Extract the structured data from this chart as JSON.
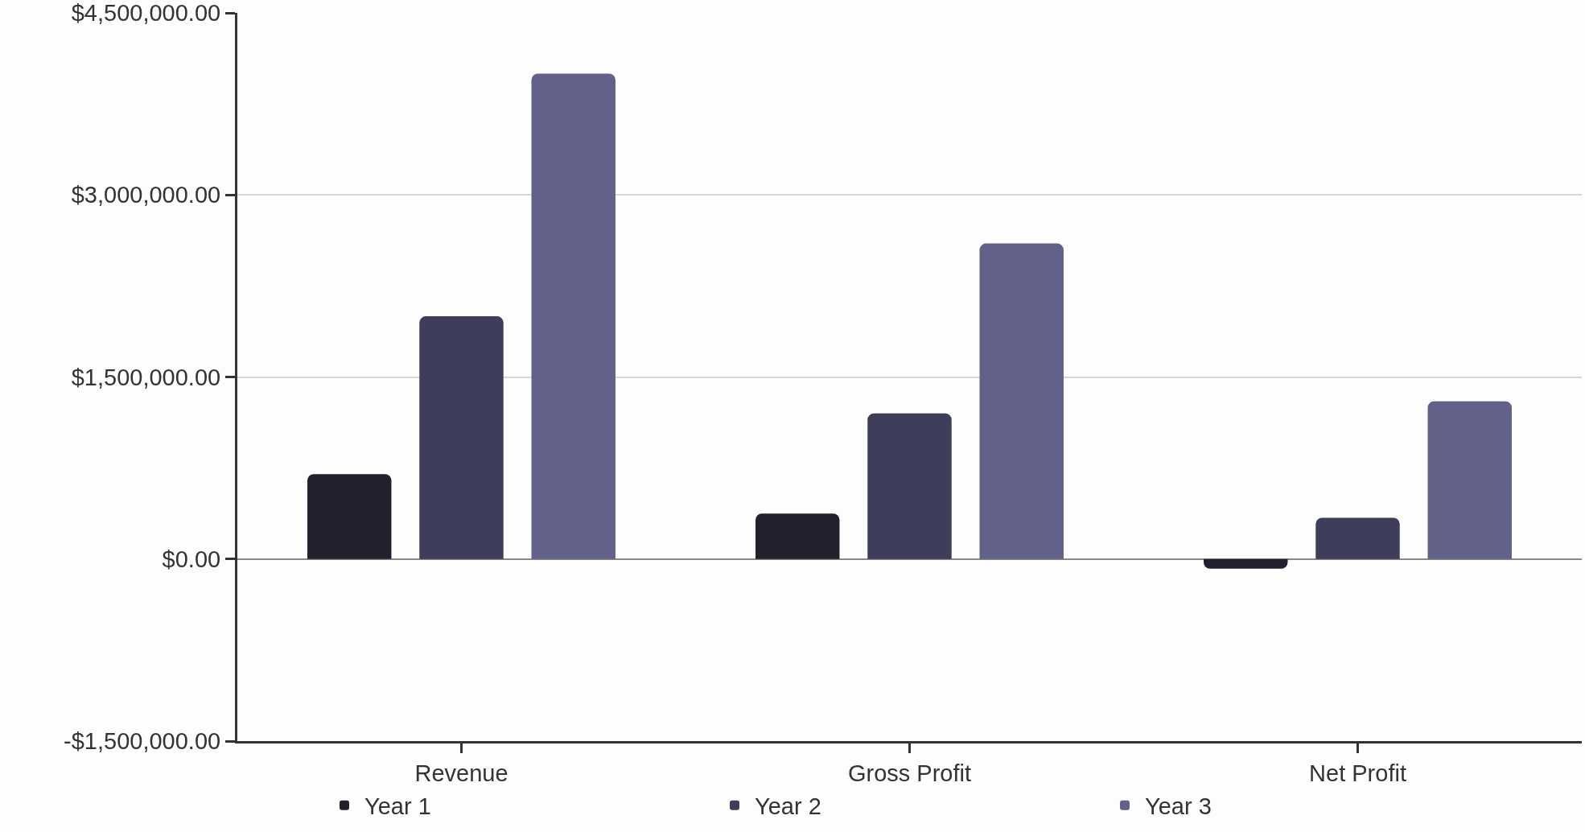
{
  "chart_data": {
    "type": "bar",
    "categories": [
      "Revenue",
      "Gross Profit",
      "Net Profit"
    ],
    "series": [
      {
        "name": "Year 1",
        "color": "#20202f",
        "values": [
          700000,
          375000,
          -80000
        ]
      },
      {
        "name": "Year 2",
        "color": "#3e3d5a",
        "values": [
          2000000,
          1200000,
          340000
        ]
      },
      {
        "name": "Year 3",
        "color": "#62618a",
        "values": [
          4000000,
          2600000,
          1300000
        ]
      }
    ],
    "ylim": [
      -1500000,
      4500000
    ],
    "yticks": [
      {
        "value": -1500000,
        "label": "-$1,500,000.00"
      },
      {
        "value": 0,
        "label": "$0.00"
      },
      {
        "value": 1500000,
        "label": "$1,500,000.00"
      },
      {
        "value": 3000000,
        "label": "$3,000,000.00"
      },
      {
        "value": 4500000,
        "label": "$4,500,000.00"
      }
    ],
    "grid": "y",
    "legend": "bottom"
  }
}
